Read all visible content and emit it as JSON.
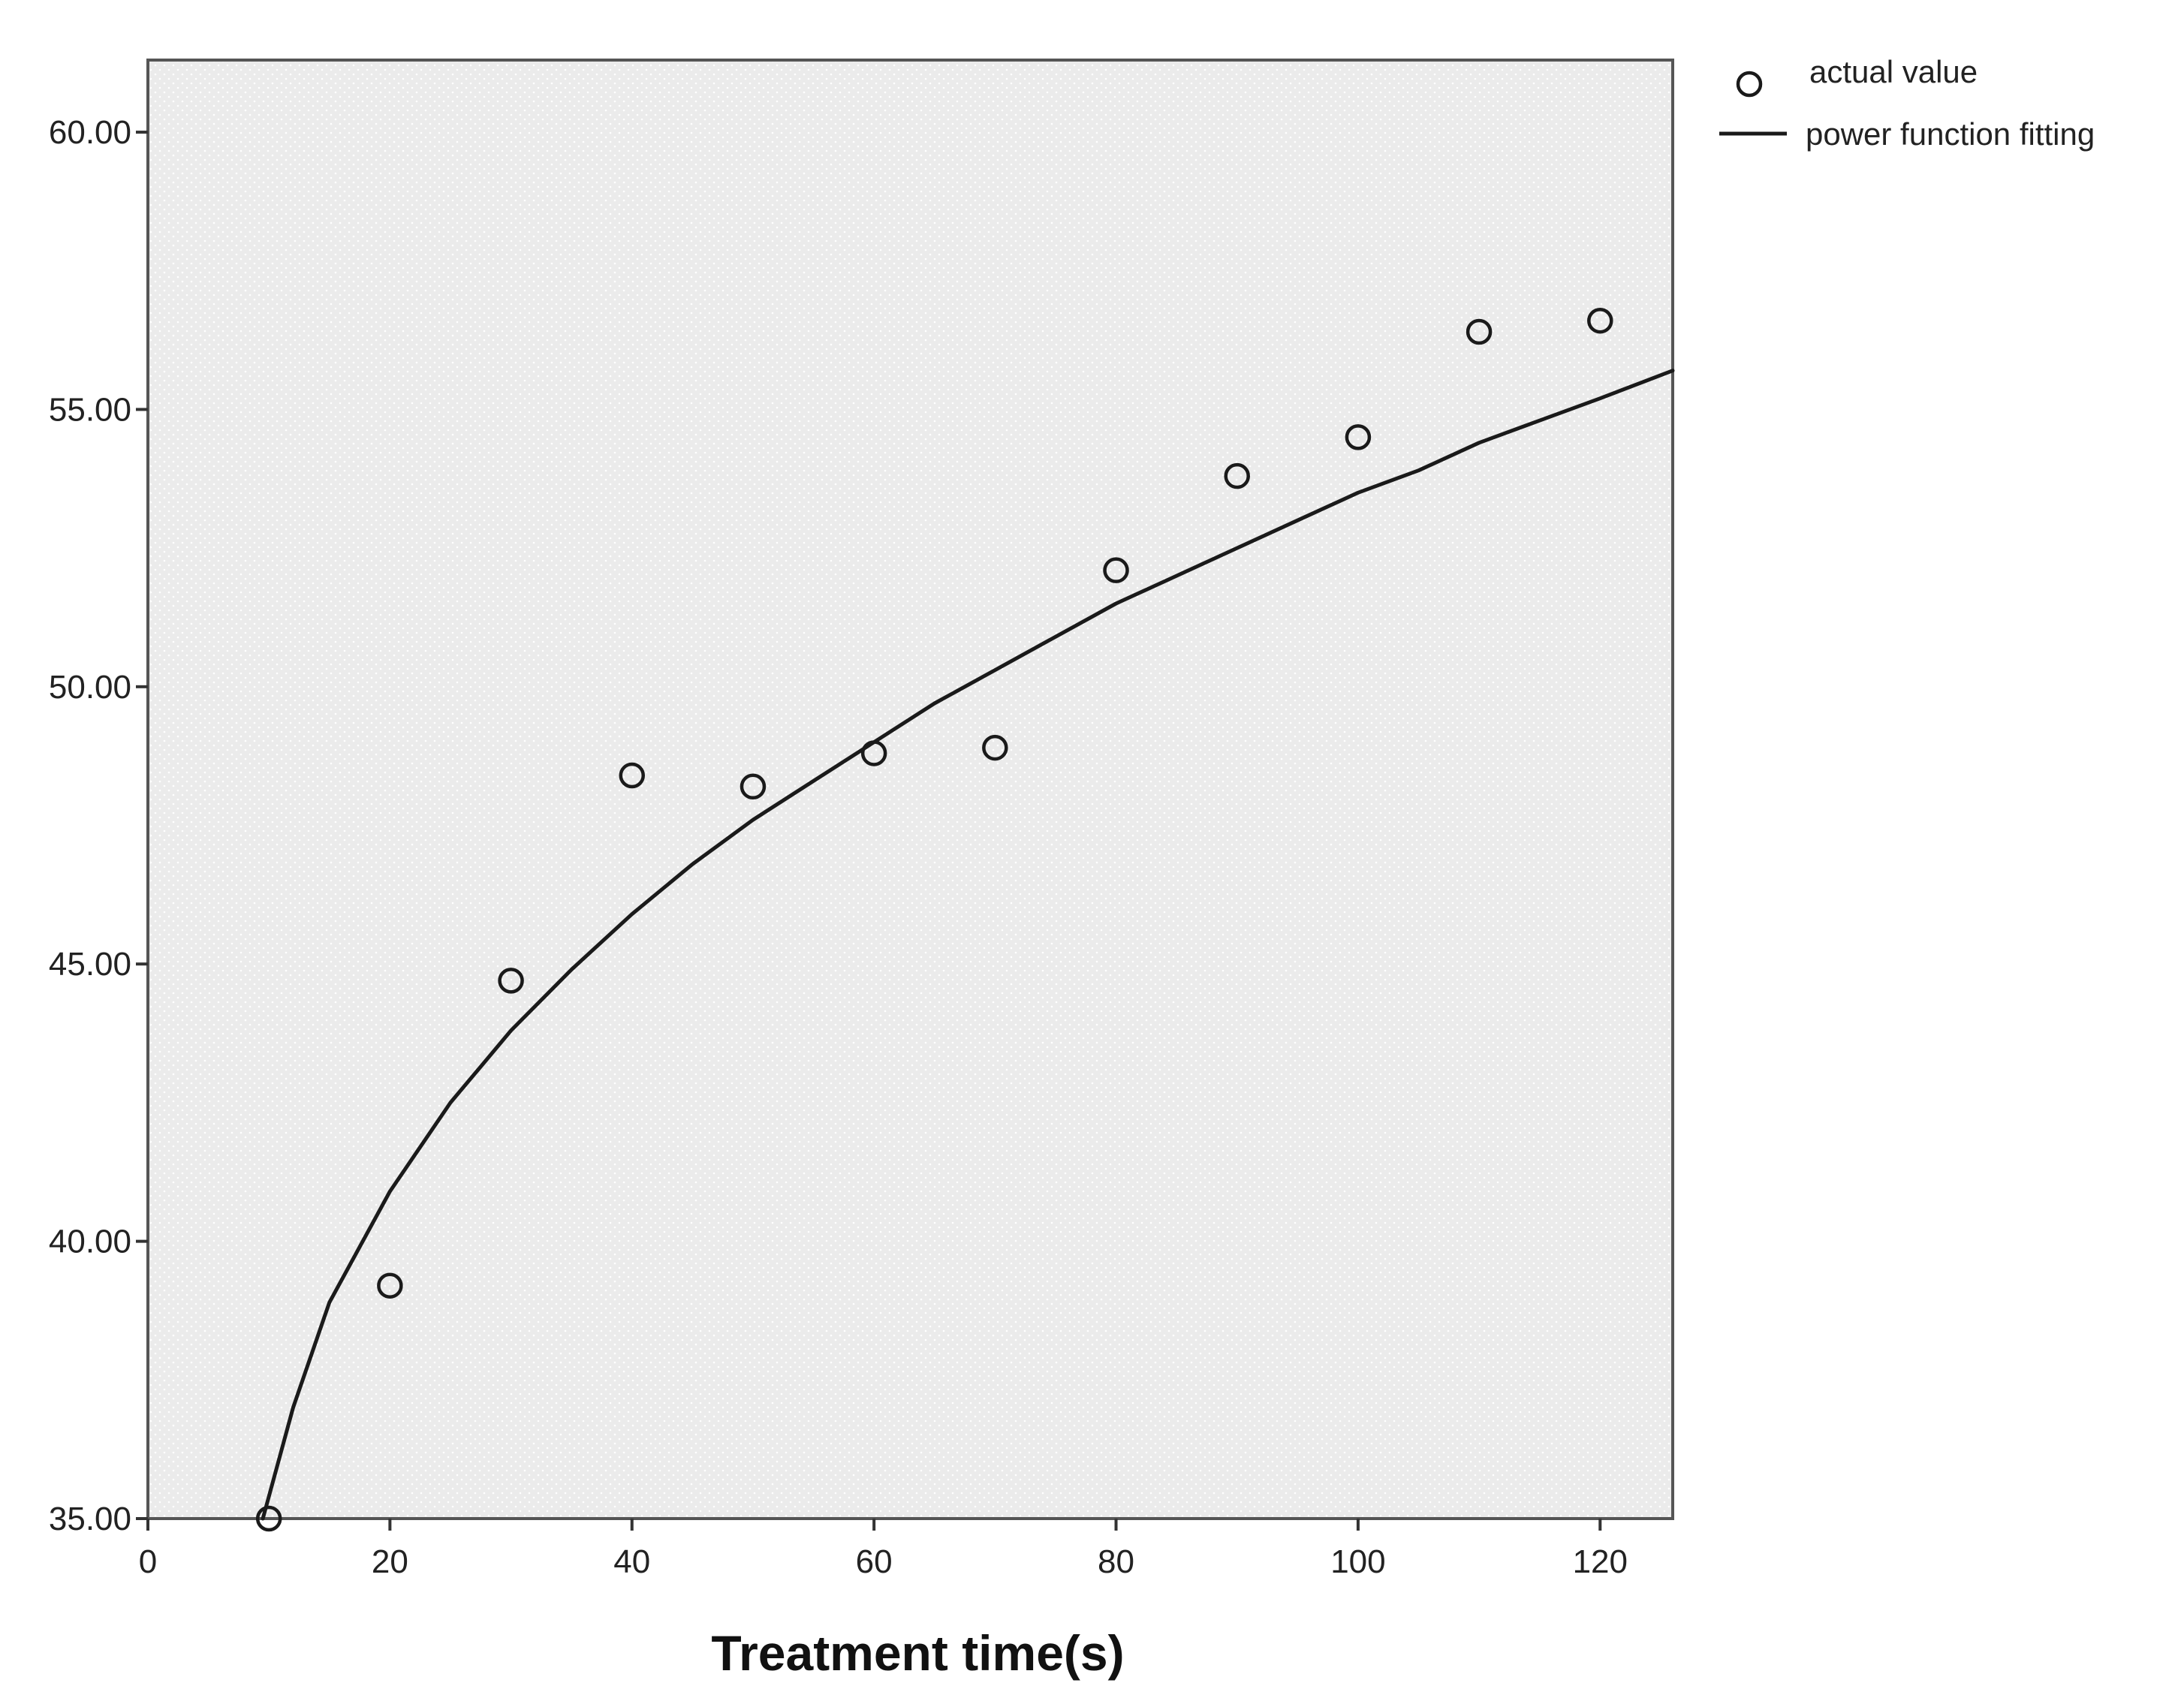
{
  "chart_data": {
    "type": "scatter",
    "title": "",
    "xlabel": "Treatment time(s)",
    "ylabel": "",
    "xlim": [
      0,
      126
    ],
    "ylim": [
      35,
      61.3
    ],
    "x_ticks": [
      0,
      20,
      40,
      60,
      80,
      100,
      120
    ],
    "x_tick_labels": [
      "0",
      "20",
      "40",
      "60",
      "80",
      "100",
      "120"
    ],
    "y_ticks": [
      35,
      40,
      45,
      50,
      55,
      60
    ],
    "y_tick_labels": [
      "35.00",
      "40.00",
      "45.00",
      "50.00",
      "55.00",
      "60.00"
    ],
    "grid": false,
    "legend_position": "top-right, outside plot",
    "plot_background": "#ececec",
    "series": [
      {
        "name": "actual value",
        "kind": "points",
        "marker": "open-circle",
        "x": [
          10,
          20,
          30,
          40,
          50,
          60,
          70,
          80,
          90,
          100,
          110,
          120
        ],
        "y": [
          35.0,
          39.2,
          44.7,
          48.4,
          48.2,
          48.8,
          48.9,
          52.1,
          53.8,
          54.5,
          56.4,
          56.6
        ]
      },
      {
        "name": "power function fitting",
        "kind": "line",
        "x": [
          9.5,
          10,
          12,
          15,
          20,
          25,
          30,
          35,
          40,
          45,
          50,
          55,
          60,
          65,
          70,
          75,
          80,
          85,
          90,
          95,
          100,
          105,
          110,
          115,
          120,
          126
        ],
        "y": [
          34.9,
          35.4,
          37.0,
          38.9,
          40.9,
          42.5,
          43.8,
          44.9,
          45.9,
          46.8,
          47.6,
          48.3,
          49.0,
          49.7,
          50.3,
          50.9,
          51.5,
          52.0,
          52.5,
          53.0,
          53.5,
          53.9,
          54.4,
          54.8,
          55.2,
          55.7
        ]
      }
    ]
  }
}
